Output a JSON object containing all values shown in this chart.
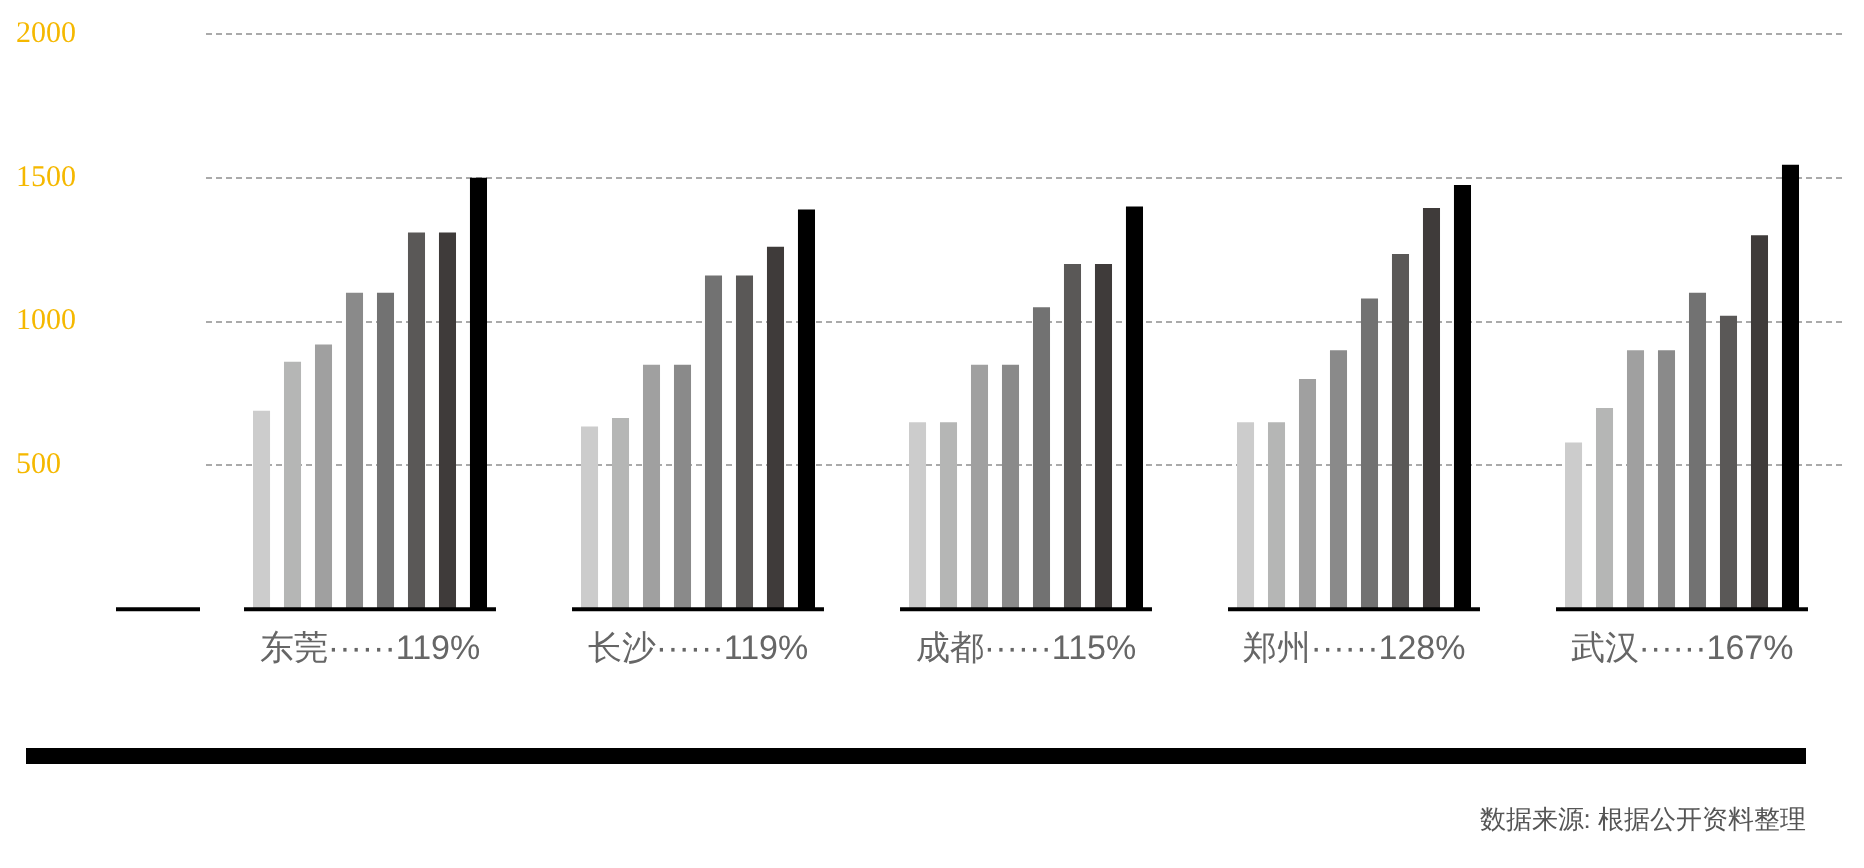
{
  "chart_data": {
    "type": "bar",
    "categories": [
      "东莞······119%",
      "长沙······119%",
      "成都······115%",
      "郑州······128%",
      "武汉······167%"
    ],
    "series": [
      {
        "color": "#cccccc",
        "values": [
          690,
          635,
          650,
          650,
          580
        ]
      },
      {
        "color": "#b5b6b5",
        "values": [
          860,
          665,
          650,
          650,
          700
        ]
      },
      {
        "color": "#a0a0a0",
        "values": [
          920,
          850,
          850,
          800,
          900
        ]
      },
      {
        "color": "#8a8a8a",
        "values": [
          1100,
          850,
          850,
          900,
          900
        ]
      },
      {
        "color": "#727272",
        "values": [
          1100,
          1160,
          1050,
          1080,
          1100
        ]
      },
      {
        "color": "#5a5857",
        "values": [
          1310,
          1160,
          1200,
          1235,
          1020
        ]
      },
      {
        "color": "#3f3b3a",
        "values": [
          1310,
          1260,
          1200,
          1395,
          1300
        ]
      },
      {
        "color": "#000000",
        "values": [
          1500,
          1390,
          1400,
          1475,
          1545
        ]
      }
    ],
    "ylim": [
      0,
      2000
    ],
    "yticks": [
      500,
      1000,
      1500,
      2000
    ],
    "grid": "y",
    "legend": false,
    "annotations": [
      "数据来源: 根据公开资料整理"
    ]
  }
}
